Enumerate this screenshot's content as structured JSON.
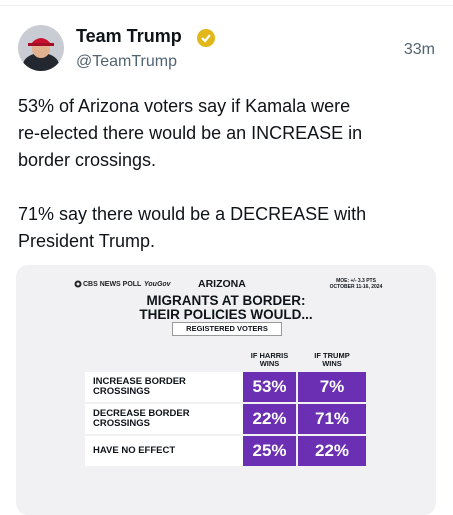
{
  "tweet": {
    "author": "Team Trump",
    "handle": "@TeamTrump",
    "time": "33m",
    "paragraphs": [
      [
        "53% of Arizona voters say if Kamala were",
        "re-elected there would be an INCREASE in",
        "border crossings."
      ],
      [
        "71% say there would be a DECREASE with",
        "President Trump."
      ]
    ]
  },
  "image": {
    "source": "CBS NEWS POLL",
    "partner": "YouGov",
    "state": "ARIZONA",
    "moe": "MOE: +/- 3.3 PTS",
    "dates": "OCTOBER 11-16, 2024",
    "title": [
      "MIGRANTS AT BORDER:",
      "THEIR POLICIES WOULD..."
    ],
    "subtitle": "REGISTERED VOTERS",
    "columns": [
      [
        "IF HARRIS",
        "WINS"
      ],
      [
        "IF TRUMP",
        "WINS"
      ]
    ],
    "rows": [
      {
        "label": [
          "INCREASE BORDER",
          "CROSSINGS"
        ],
        "values": [
          "53%",
          "7%"
        ]
      },
      {
        "label": [
          "DECREASE BORDER",
          "CROSSINGS"
        ],
        "values": [
          "22%",
          "71%"
        ]
      },
      {
        "label": [
          "HAVE NO EFFECT"
        ],
        "values": [
          "25%",
          "22%"
        ]
      }
    ]
  }
}
